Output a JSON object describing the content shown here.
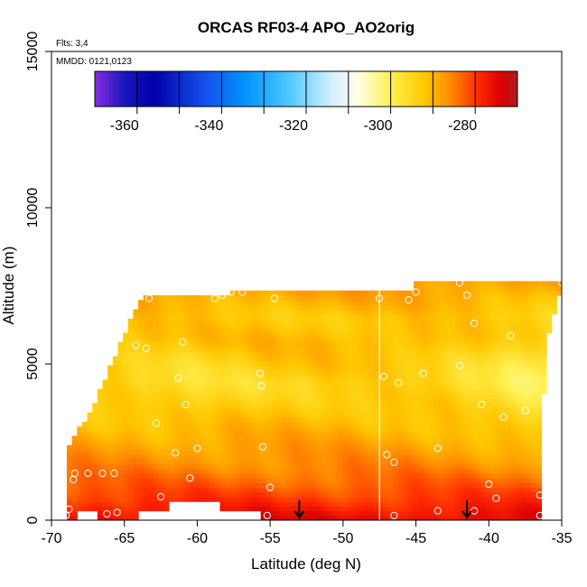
{
  "chart_data": {
    "type": "heatmap",
    "title": "ORCAS RF03-4 APO_AO2orig",
    "xlabel": "Latitude (deg N)",
    "ylabel": "Altitude (m)",
    "xlim": [
      -70,
      -35
    ],
    "ylim": [
      0,
      15000
    ],
    "x_ticks": [
      -70,
      -65,
      -60,
      -55,
      -50,
      -45,
      -40,
      -35
    ],
    "x_tick_labels": [
      "-70",
      "-65",
      "-60",
      "-55",
      "-50",
      "-45",
      "-40",
      "-35"
    ],
    "y_ticks": [
      0,
      5000,
      10000,
      15000
    ],
    "y_tick_labels": [
      "0",
      "5000",
      "10000",
      "15000"
    ],
    "annotations": {
      "flights": "Flts: 3,4",
      "dates": "MMDD: 0121,0123"
    },
    "colorbar": {
      "range": [
        -367,
        -267
      ],
      "ticks": [
        -360,
        -340,
        -320,
        -300,
        -280
      ],
      "tick_labels": [
        "-360",
        "-340",
        "-320",
        "-300",
        "-280"
      ]
    },
    "field_bands": [
      {
        "alt": 0,
        "value": -272
      },
      {
        "alt": 300,
        "value": -274
      },
      {
        "alt": 700,
        "value": -277
      },
      {
        "alt": 1200,
        "value": -280
      },
      {
        "alt": 1800,
        "value": -283
      },
      {
        "alt": 2400,
        "value": -285
      },
      {
        "alt": 3000,
        "value": -287
      },
      {
        "alt": 3700,
        "value": -289
      },
      {
        "alt": 4400,
        "value": -291
      },
      {
        "alt": 5000,
        "value": -289
      },
      {
        "alt": 5700,
        "value": -287
      },
      {
        "alt": 6500,
        "value": -289
      },
      {
        "alt": 7200,
        "value": -286
      },
      {
        "alt": 7700,
        "value": -284
      }
    ],
    "hot_spot": {
      "lat": -35.8,
      "alt": 4500,
      "value": -298
    },
    "cool_spot": {
      "lat": -60.5,
      "alt": 4500,
      "value": -295
    },
    "transect_boundary": [
      {
        "lat": -69.0,
        "alt": 0
      },
      {
        "lat": -69.0,
        "alt": 2200
      },
      {
        "lat": -67.0,
        "alt": 3800
      },
      {
        "lat": -65.5,
        "alt": 5400
      },
      {
        "lat": -64.0,
        "alt": 7000
      },
      {
        "lat": -63.5,
        "alt": 7250
      },
      {
        "lat": -57.8,
        "alt": 7250
      },
      {
        "lat": -57.8,
        "alt": 7400
      },
      {
        "lat": -45.0,
        "alt": 7400
      },
      {
        "lat": -45.0,
        "alt": 7700
      },
      {
        "lat": -35.0,
        "alt": 7700
      },
      {
        "lat": -35.0,
        "alt": 7400
      },
      {
        "lat": -35.9,
        "alt": 6000
      },
      {
        "lat": -36.1,
        "alt": 4500
      },
      {
        "lat": -36.5,
        "alt": 3000
      },
      {
        "lat": -36.5,
        "alt": 0
      }
    ],
    "gaps": [
      {
        "lat_from": -68.2,
        "lat_to": -67.0,
        "alt_from": 0,
        "alt_to": 300
      },
      {
        "lat_from": -64.0,
        "lat_to": -55.5,
        "alt_from": 0,
        "alt_to": 300
      },
      {
        "lat_from": -62.0,
        "lat_to": -58.3,
        "alt_from": 300,
        "alt_to": 650
      }
    ],
    "divider_lat": -47.5,
    "sample_points": [
      {
        "lat": -69.0,
        "alt": 150
      },
      {
        "lat": -68.8,
        "alt": 350
      },
      {
        "lat": -68.5,
        "alt": 1300
      },
      {
        "lat": -68.4,
        "alt": 1500
      },
      {
        "lat": -67.5,
        "alt": 1500
      },
      {
        "lat": -66.5,
        "alt": 1500
      },
      {
        "lat": -65.7,
        "alt": 1500
      },
      {
        "lat": -66.2,
        "alt": 200
      },
      {
        "lat": -65.5,
        "alt": 250
      },
      {
        "lat": -62.5,
        "alt": 750
      },
      {
        "lat": -60.5,
        "alt": 1350
      },
      {
        "lat": -61.5,
        "alt": 2150
      },
      {
        "lat": -60.0,
        "alt": 2300
      },
      {
        "lat": -60.0,
        "alt": 150
      },
      {
        "lat": -55.5,
        "alt": 2350
      },
      {
        "lat": -55.0,
        "alt": 1050
      },
      {
        "lat": -55.2,
        "alt": 150
      },
      {
        "lat": -62.8,
        "alt": 3100
      },
      {
        "lat": -60.8,
        "alt": 3700
      },
      {
        "lat": -61.3,
        "alt": 4550
      },
      {
        "lat": -55.6,
        "alt": 4300
      },
      {
        "lat": -55.7,
        "alt": 4700
      },
      {
        "lat": -63.5,
        "alt": 5500
      },
      {
        "lat": -61.0,
        "alt": 5700
      },
      {
        "lat": -64.2,
        "alt": 5600
      },
      {
        "lat": -63.3,
        "alt": 7100
      },
      {
        "lat": -58.8,
        "alt": 7100
      },
      {
        "lat": -58.3,
        "alt": 7200
      },
      {
        "lat": -57.7,
        "alt": 7300
      },
      {
        "lat": -56.9,
        "alt": 7300
      },
      {
        "lat": -54.7,
        "alt": 7100
      },
      {
        "lat": -47.5,
        "alt": 7100
      },
      {
        "lat": -45.5,
        "alt": 7050
      },
      {
        "lat": -45.0,
        "alt": 7300
      },
      {
        "lat": -42.0,
        "alt": 7600
      },
      {
        "lat": -41.5,
        "alt": 7200
      },
      {
        "lat": -41.0,
        "alt": 6300
      },
      {
        "lat": -38.5,
        "alt": 5900
      },
      {
        "lat": -35.0,
        "alt": 7600
      },
      {
        "lat": -46.2,
        "alt": 4400
      },
      {
        "lat": -44.5,
        "alt": 4700
      },
      {
        "lat": -42.0,
        "alt": 4950
      },
      {
        "lat": -47.2,
        "alt": 4600
      },
      {
        "lat": -40.5,
        "alt": 3700
      },
      {
        "lat": -39.0,
        "alt": 3300
      },
      {
        "lat": -37.5,
        "alt": 3500
      },
      {
        "lat": -35.5,
        "alt": 4950
      },
      {
        "lat": -36.0,
        "alt": 2400
      },
      {
        "lat": -43.5,
        "alt": 2300
      },
      {
        "lat": -47.0,
        "alt": 2100
      },
      {
        "lat": -46.5,
        "alt": 1850
      },
      {
        "lat": -40.0,
        "alt": 1150
      },
      {
        "lat": -39.5,
        "alt": 700
      },
      {
        "lat": -36.5,
        "alt": 800
      },
      {
        "lat": -36.5,
        "alt": 150
      },
      {
        "lat": -43.5,
        "alt": 300
      },
      {
        "lat": -41.0,
        "alt": 300
      },
      {
        "lat": -46.5,
        "alt": 150
      }
    ],
    "arrows": [
      {
        "lat": -53.0
      },
      {
        "lat": -41.5
      }
    ]
  }
}
